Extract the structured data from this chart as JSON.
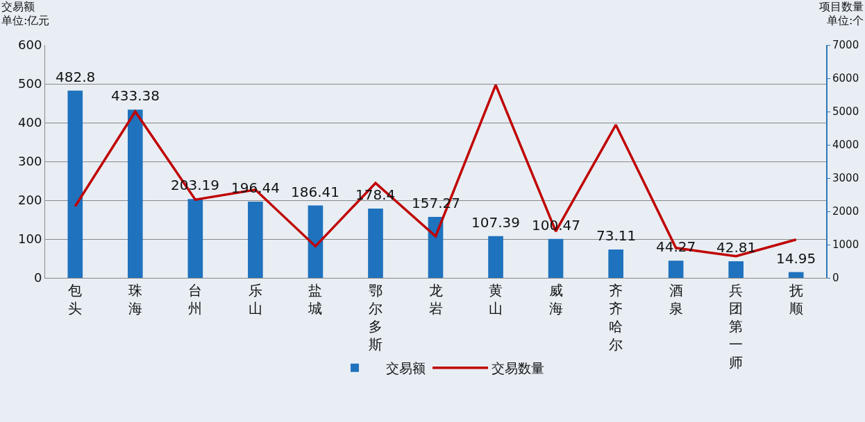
{
  "chart_data": {
    "type": "bar",
    "ylabel": "交易额",
    "y2label": "项目数量",
    "annotations": [
      "单位:亿元",
      "单位:个"
    ],
    "categories": [
      "包头",
      "珠海",
      "台州",
      "乐山",
      "盐城",
      "鄂尔多斯",
      "龙岩",
      "黄山",
      "威海",
      "齐齐哈尔",
      "酒泉",
      "兵团第一师",
      "抚顺"
    ],
    "series": [
      {
        "name": "交易额",
        "color": "#1f72bd",
        "values": [
          482.8,
          433.38,
          203.19,
          196.44,
          186.41,
          178.4,
          157.27,
          107.39,
          100.47,
          73.11,
          44.27,
          42.81,
          14.95
        ],
        "value_labels": [
          "482.8",
          "433.38",
          "203.19",
          "196.44",
          "186.41",
          "178.4",
          "157.27",
          "107.39",
          "100.47",
          "73.11",
          "44.27",
          "42.81",
          "14.95"
        ]
      },
      {
        "name": "交易数量",
        "type": "line",
        "axis": "y2",
        "color": "#c00000",
        "values": [
          2150,
          5000,
          2350,
          2650,
          950,
          2850,
          1250,
          5800,
          1400,
          4600,
          900,
          650,
          1150
        ]
      }
    ],
    "ylim": [
      0,
      600
    ],
    "yticks": [
      0,
      100,
      200,
      300,
      400,
      500,
      600
    ],
    "y2lim": [
      0,
      7000
    ],
    "y2ticks": [
      0,
      1000,
      2000,
      3000,
      4000,
      5000,
      6000,
      7000
    ],
    "grid": "y",
    "legend": "bottom",
    "marker": "none",
    "line_style": "solid"
  }
}
